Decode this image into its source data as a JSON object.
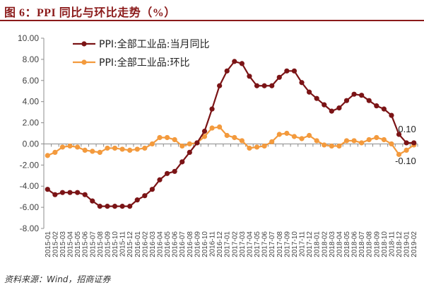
{
  "figure": {
    "title": "图 6：PPI 同比与环比走势（%）",
    "source": "资料来源：Wind，招商证券"
  },
  "colors": {
    "yoy": "#7b1416",
    "mom": "#f39a3d",
    "title": "#8b1a1a",
    "axis": "#8c8c8c"
  },
  "chart_data": {
    "type": "line",
    "title": "",
    "xlabel": "",
    "ylabel": "",
    "ylim": [
      -8,
      10
    ],
    "yticks": [
      10,
      8,
      6,
      4,
      2,
      0,
      -2,
      -4,
      -6,
      -8
    ],
    "ytick_labels": [
      "10.00",
      "8.00",
      "6.00",
      "4.00",
      "2.00",
      "0.00",
      "-2.00",
      "-4.00",
      "-6.00",
      "-8.00"
    ],
    "grid": false,
    "legend_position": "top-left",
    "categories": [
      "2015-01",
      "2015-02",
      "2015-03",
      "2015-04",
      "2015-05",
      "2015-06",
      "2015-07",
      "2015-08",
      "2015-09",
      "2015-10",
      "2015-11",
      "2015-12",
      "2016-01",
      "2016-02",
      "2016-03",
      "2016-04",
      "2016-05",
      "2016-06",
      "2016-07",
      "2016-08",
      "2016-09",
      "2016-10",
      "2016-11",
      "2016-12",
      "2017-01",
      "2017-02",
      "2017-03",
      "2017-04",
      "2017-05",
      "2017-06",
      "2017-07",
      "2017-08",
      "2017-09",
      "2017-10",
      "2017-11",
      "2017-12",
      "2018-01",
      "2018-02",
      "2018-03",
      "2018-04",
      "2018-05",
      "2018-06",
      "2018-07",
      "2018-08",
      "2018-09",
      "2018-10",
      "2018-11",
      "2018-12",
      "2019-01",
      "2019-02"
    ],
    "series": [
      {
        "name": "PPI:全部工业品:当月同比",
        "key": "yoy",
        "values": [
          -4.3,
          -4.8,
          -4.6,
          -4.6,
          -4.6,
          -4.8,
          -5.4,
          -5.9,
          -5.9,
          -5.9,
          -5.9,
          -5.9,
          -5.3,
          -4.9,
          -4.3,
          -3.4,
          -2.8,
          -2.6,
          -1.7,
          -0.8,
          0.1,
          1.2,
          3.3,
          5.5,
          6.9,
          7.8,
          7.6,
          6.4,
          5.5,
          5.5,
          5.5,
          6.3,
          6.9,
          6.9,
          5.8,
          4.9,
          4.3,
          3.7,
          3.1,
          3.4,
          4.1,
          4.7,
          4.6,
          4.1,
          3.6,
          3.3,
          2.7,
          0.9,
          0.1,
          0.1
        ]
      },
      {
        "name": "PPI:全部工业品:环比",
        "key": "mom",
        "values": [
          -1.1,
          -0.8,
          -0.3,
          -0.2,
          -0.3,
          -0.6,
          -0.7,
          -0.8,
          -0.4,
          -0.4,
          -0.5,
          -0.6,
          -0.5,
          -0.4,
          0.0,
          0.6,
          0.6,
          0.4,
          -0.2,
          0.0,
          0.1,
          0.7,
          1.5,
          1.6,
          0.8,
          0.6,
          0.3,
          -0.4,
          -0.3,
          -0.2,
          0.2,
          0.9,
          1.0,
          0.7,
          0.5,
          0.8,
          0.3,
          -0.1,
          -0.2,
          -0.2,
          0.3,
          0.3,
          0.1,
          0.4,
          0.6,
          0.4,
          0.0,
          -1.0,
          -0.6,
          -0.1
        ]
      }
    ],
    "annotations": [
      {
        "text": "0.10",
        "series": "yoy"
      },
      {
        "text": "-0.10",
        "series": "mom"
      }
    ]
  }
}
